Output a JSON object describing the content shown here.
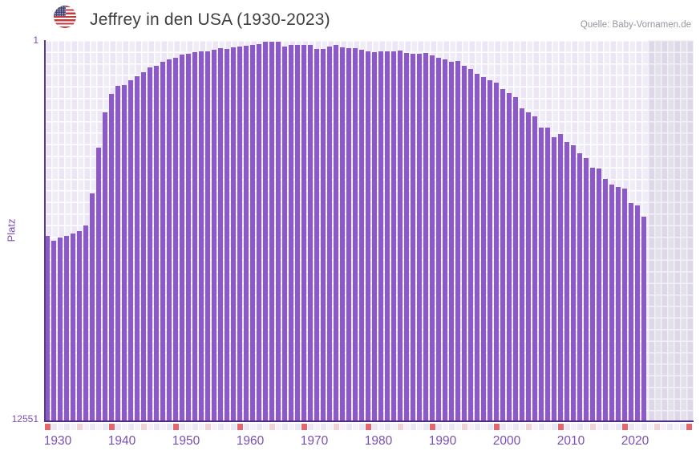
{
  "header": {
    "title": "Jeffrey in den USA (1930-2023)",
    "source": "Quelle: Baby-Vornamen.de",
    "flag": "usa-flag"
  },
  "chart_data": {
    "type": "bar",
    "title": "Jeffrey in den USA (1930-2023)",
    "xlabel": "",
    "ylabel": "Platz",
    "y_axis": {
      "top_tick": "1",
      "bottom_tick": "12551",
      "ylim": [
        1,
        12551
      ],
      "inverted": true,
      "scale": "linear"
    },
    "x_ticks": [
      "1930",
      "1940",
      "1950",
      "1960",
      "1970",
      "1980",
      "1990",
      "2000",
      "2010",
      "2020"
    ],
    "grid": true,
    "legend": false,
    "years": [
      1930,
      1931,
      1932,
      1933,
      1934,
      1935,
      1936,
      1937,
      1938,
      1939,
      1940,
      1941,
      1942,
      1943,
      1944,
      1945,
      1946,
      1947,
      1948,
      1949,
      1950,
      1951,
      1952,
      1953,
      1954,
      1955,
      1956,
      1957,
      1958,
      1959,
      1960,
      1961,
      1962,
      1963,
      1964,
      1965,
      1966,
      1967,
      1968,
      1969,
      1970,
      1971,
      1972,
      1973,
      1974,
      1975,
      1976,
      1977,
      1978,
      1979,
      1980,
      1981,
      1982,
      1983,
      1984,
      1985,
      1986,
      1987,
      1988,
      1989,
      1990,
      1991,
      1992,
      1993,
      1994,
      1995,
      1996,
      1997,
      1998,
      1999,
      2000,
      2001,
      2002,
      2003,
      2004,
      2005,
      2006,
      2007,
      2008,
      2009,
      2010,
      2011,
      2012,
      2013,
      2014,
      2015,
      2016,
      2017,
      2018,
      2019,
      2020,
      2021,
      2022,
      2023
    ],
    "values": [
      6449,
      6608,
      6502,
      6449,
      6369,
      6290,
      6104,
      5042,
      3530,
      2389,
      1779,
      1513,
      1487,
      1328,
      1195,
      1062,
      903,
      850,
      717,
      638,
      585,
      479,
      452,
      399,
      359,
      372,
      319,
      266,
      293,
      240,
      213,
      187,
      160,
      134,
      54,
      54,
      54,
      200,
      168,
      168,
      168,
      168,
      279,
      279,
      205,
      160,
      240,
      266,
      266,
      327,
      380,
      399,
      380,
      380,
      380,
      354,
      417,
      444,
      444,
      417,
      505,
      576,
      645,
      709,
      690,
      842,
      948,
      1107,
      1221,
      1309,
      1389,
      1601,
      1752,
      1885,
      2238,
      2371,
      2522,
      2875,
      2875,
      3185,
      3105,
      3344,
      3450,
      3715,
      3893,
      4201,
      4220,
      4564,
      4750,
      4829,
      4882,
      5360,
      5440,
      5811
    ],
    "future_years_shown": [
      2024,
      2025,
      2026,
      2027,
      2028,
      2029,
      2030
    ]
  },
  "colors": {
    "bar": "#8c5ac4",
    "plot_bg": "#f1edf8",
    "future_bg": "#e3dfeb",
    "spine": "#5a3b92",
    "axis_line": "#4e2c83",
    "tick_text": "#7a4fb3",
    "title_text": "#3f3f3f",
    "source_text": "#98949f",
    "decade_cell": "#e0696e",
    "half_decade_cell": "#f2d2d9",
    "strip_cell_a": "#f4f1f9",
    "strip_cell_b": "#ebe7f3"
  }
}
